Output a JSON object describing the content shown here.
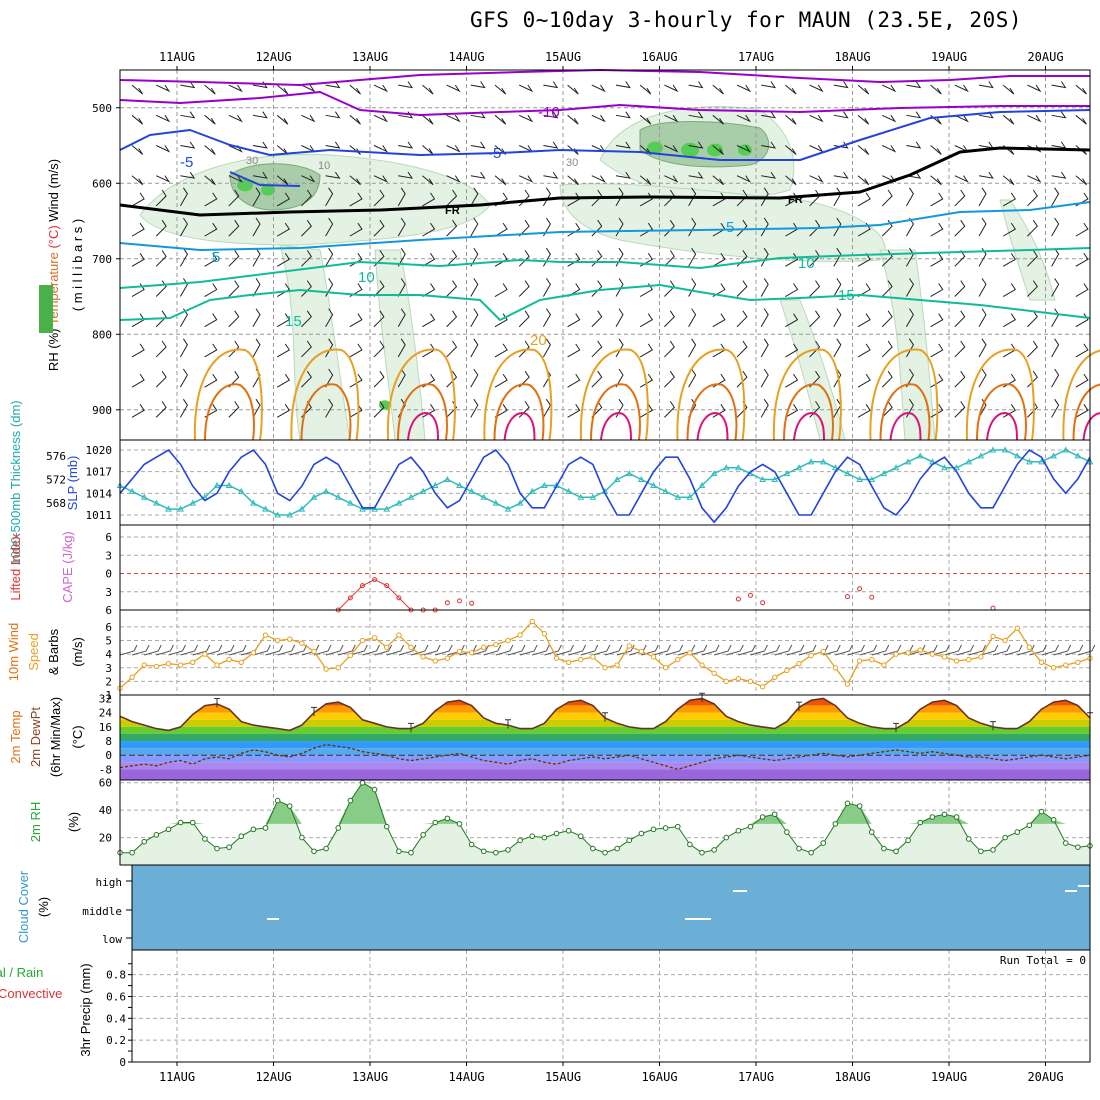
{
  "title": "GFS 0~10day 3-hourly for MAUN (23.5E, 20S)",
  "dates": [
    "11AUG",
    "12AUG",
    "13AUG",
    "14AUG",
    "15AUG",
    "16AUG",
    "17AUG",
    "18AUG",
    "19AUG",
    "20AUG"
  ],
  "colors": {
    "purple": "#9900cc",
    "blue": "#2244dd",
    "cyan": "#1199dd",
    "teal": "#11bb99",
    "green": "#22aa33",
    "orange": "#e8a020",
    "dkorange": "#e07010",
    "magenta": "#dd1177",
    "red": "#dd3333",
    "cloud": "#6baed6"
  },
  "chart_data": [
    {
      "type": "contour",
      "panel": "upper-air",
      "ylabel_parts": [
        "RH (%)",
        "Temperature",
        "(°C)",
        "Wind (m/s)"
      ],
      "ylabel_sub": "( m i l l i b a r s )",
      "yticks": [
        "500",
        "600",
        "700",
        "800",
        "900"
      ],
      "ylim": [
        940,
        450
      ],
      "contour_labels": [
        "-10",
        "-5",
        "-5",
        "5",
        "5",
        "10",
        "10",
        "15",
        "15",
        "20",
        "FR",
        "FR",
        "30",
        "30",
        "10"
      ]
    },
    {
      "type": "line",
      "panel": "sfc-pressure",
      "ylabel_left": "1000-500mb Thickness (dm)",
      "ylabel_right": "SLP (mb)",
      "yticks_left": [
        "576",
        "572",
        "568"
      ],
      "yticks_right": [
        "1020",
        "1017",
        "1014",
        "1011"
      ],
      "x": [
        0,
        1,
        2,
        3,
        4,
        5,
        6,
        7,
        8,
        9,
        10,
        11,
        12,
        13,
        14,
        15,
        16,
        17,
        18,
        19,
        20,
        21,
        22,
        23,
        24,
        25,
        26,
        27,
        28,
        29,
        30,
        31,
        32,
        33,
        34,
        35,
        36,
        37,
        38,
        39,
        40,
        41,
        42,
        43,
        44,
        45,
        46,
        47,
        48,
        49,
        50,
        51,
        52,
        53,
        54,
        55,
        56,
        57,
        58,
        59,
        60,
        61,
        62,
        63,
        64,
        65,
        66,
        67,
        68,
        69,
        70,
        71,
        72,
        73,
        74,
        75,
        76,
        77,
        78,
        79,
        80
      ],
      "series": [
        {
          "name": "SLP (mb)",
          "values": [
            1014,
            1016,
            1018,
            1019,
            1020,
            1018,
            1015,
            1013,
            1014,
            1017,
            1019,
            1020,
            1018,
            1014,
            1013,
            1015,
            1018,
            1019,
            1018,
            1015,
            1012,
            1012,
            1015,
            1018,
            1019,
            1017,
            1014,
            1012,
            1013,
            1016,
            1019,
            1020,
            1018,
            1014,
            1012,
            1012,
            1015,
            1018,
            1019,
            1018,
            1014,
            1011,
            1011,
            1014,
            1017,
            1019,
            1019,
            1016,
            1012,
            1010,
            1012,
            1015,
            1017,
            1018,
            1017,
            1014,
            1011,
            1011,
            1014,
            1017,
            1019,
            1018,
            1015,
            1012,
            1011,
            1013,
            1016,
            1018,
            1019,
            1017,
            1014,
            1012,
            1012,
            1015,
            1018,
            1020,
            1019,
            1016,
            1014,
            1016,
            1019
          ]
        },
        {
          "name": "1000-500mb Thickness (dm)",
          "values": [
            571,
            570,
            569,
            568,
            567,
            567,
            568,
            569,
            571,
            571,
            570,
            568,
            567,
            566,
            566,
            567,
            569,
            570,
            569,
            568,
            567,
            567,
            567,
            568,
            569,
            570,
            571,
            572,
            571,
            570,
            569,
            568,
            567,
            568,
            570,
            571,
            571,
            570,
            569,
            569,
            570,
            572,
            573,
            572,
            571,
            570,
            569,
            569,
            571,
            573,
            574,
            574,
            573,
            572,
            572,
            573,
            574,
            575,
            575,
            574,
            573,
            572,
            572,
            573,
            574,
            575,
            576,
            575,
            574,
            574,
            575,
            576,
            577,
            577,
            576,
            575,
            575,
            576,
            577,
            576,
            575
          ]
        }
      ]
    },
    {
      "type": "line",
      "panel": "stability",
      "ylabel": "Lifted Index",
      "ylabel2": "CAPE (J/kg)",
      "yticks": [
        "6",
        "3",
        "0",
        "3",
        "6"
      ],
      "ylim": [
        6,
        -6
      ],
      "x": [
        18,
        19,
        20,
        21,
        22,
        23,
        24,
        25,
        26
      ],
      "series": [
        {
          "name": "Lifted Index",
          "values": [
            6,
            4,
            2,
            1,
            2,
            4,
            6,
            6,
            6
          ]
        }
      ]
    },
    {
      "type": "line",
      "panel": "wind10m",
      "ylabel": "10m Wind Speed & Barbs (m/s)",
      "yticks": [
        "6",
        "5",
        "4",
        "3",
        "2",
        "1"
      ],
      "ylim": [
        1,
        6.8
      ],
      "x": [
        0,
        1,
        2,
        3,
        4,
        5,
        6,
        7,
        8,
        9,
        10,
        11,
        12,
        13,
        14,
        15,
        16,
        17,
        18,
        19,
        20,
        21,
        22,
        23,
        24,
        25,
        26,
        27,
        28,
        29,
        30,
        31,
        32,
        33,
        34,
        35,
        36,
        37,
        38,
        39,
        40,
        41,
        42,
        43,
        44,
        45,
        46,
        47,
        48,
        49,
        50,
        51,
        52,
        53,
        54,
        55,
        56,
        57,
        58,
        59,
        60,
        61,
        62,
        63,
        64,
        65,
        66,
        67,
        68,
        69,
        70,
        71,
        72,
        73,
        74,
        75,
        76,
        77,
        78,
        79,
        80
      ],
      "series": [
        {
          "name": "10m Wind Speed",
          "values": [
            1.5,
            2.3,
            3.2,
            3.1,
            3.3,
            3.2,
            3.4,
            4.0,
            3.2,
            3.6,
            3.4,
            4.1,
            5.4,
            5.0,
            5.1,
            4.8,
            4.2,
            2.9,
            3.0,
            3.9,
            5.0,
            5.2,
            4.5,
            5.4,
            4.5,
            3.8,
            3.5,
            3.7,
            4.2,
            4.1,
            4.5,
            4.7,
            5.0,
            5.4,
            6.4,
            5.5,
            3.7,
            3.4,
            3.6,
            3.8,
            3.0,
            3.2,
            4.6,
            4.2,
            3.8,
            3.0,
            3.6,
            4.1,
            3.2,
            2.6,
            2.0,
            2.2,
            2.0,
            1.6,
            2.3,
            2.8,
            3.3,
            3.9,
            4.2,
            3.0,
            1.8,
            3.5,
            3.6,
            3.2,
            4.0,
            4.1,
            4.3,
            4.0,
            3.8,
            3.5,
            3.6,
            3.8,
            5.3,
            5.0,
            5.9,
            4.5,
            3.4,
            3.0,
            3.2,
            3.4,
            3.7
          ]
        }
      ]
    },
    {
      "type": "area",
      "panel": "temperature",
      "ylabel": "2m Temp 2m DewPt (6hr Min/Max) (°C)",
      "yticks": [
        "32",
        "24",
        "16",
        "8",
        "0",
        "-8"
      ],
      "ylim": [
        -14,
        34
      ],
      "x": [
        0,
        1,
        2,
        3,
        4,
        5,
        6,
        7,
        8,
        9,
        10,
        11,
        12,
        13,
        14,
        15,
        16,
        17,
        18,
        19,
        20,
        21,
        22,
        23,
        24,
        25,
        26,
        27,
        28,
        29,
        30,
        31,
        32,
        33,
        34,
        35,
        36,
        37,
        38,
        39,
        40,
        41,
        42,
        43,
        44,
        45,
        46,
        47,
        48,
        49,
        50,
        51,
        52,
        53,
        54,
        55,
        56,
        57,
        58,
        59,
        60,
        61,
        62,
        63,
        64,
        65,
        66,
        67,
        68,
        69,
        70,
        71,
        72,
        73,
        74,
        75,
        76,
        77,
        78,
        79,
        80
      ],
      "series": [
        {
          "name": "2m Temp",
          "values": [
            22,
            19,
            17,
            15,
            14,
            16,
            23,
            28,
            29,
            26,
            19,
            17,
            16,
            15,
            14,
            17,
            24,
            29,
            30,
            27,
            20,
            18,
            16,
            15,
            15,
            18,
            25,
            30,
            31,
            28,
            21,
            18,
            17,
            15,
            15,
            18,
            26,
            30,
            31,
            28,
            21,
            18,
            16,
            15,
            15,
            19,
            26,
            31,
            32,
            29,
            22,
            19,
            17,
            16,
            15,
            19,
            27,
            31,
            32,
            28,
            21,
            18,
            16,
            15,
            15,
            19,
            26,
            30,
            31,
            28,
            21,
            18,
            16,
            15,
            15,
            19,
            26,
            30,
            31,
            28,
            21
          ]
        },
        {
          "name": "2m DewPt",
          "values": [
            -7,
            -6,
            -5,
            -6,
            -4,
            -3,
            -5,
            -2,
            -1,
            -2,
            1,
            3,
            2,
            0,
            -1,
            1,
            4,
            6,
            5,
            4,
            2,
            1,
            0,
            -2,
            -3,
            -2,
            -1,
            0,
            1,
            -1,
            -3,
            -4,
            -5,
            -3,
            -2,
            -4,
            -5,
            -3,
            -2,
            -1,
            -2,
            -1,
            0,
            -2,
            -4,
            -6,
            -8,
            -6,
            -4,
            -2,
            -1,
            0,
            -1,
            -2,
            -3,
            -2,
            -1,
            0,
            1,
            0,
            -1,
            0,
            1,
            2,
            3,
            2,
            1,
            2,
            1,
            0,
            -1,
            -1,
            -2,
            -3,
            -2,
            -1,
            0,
            -1,
            -2,
            -1,
            0
          ]
        }
      ]
    },
    {
      "type": "area",
      "panel": "rh2m",
      "ylabel": "2m RH (%)",
      "yticks": [
        "60",
        "40",
        "20"
      ],
      "ylim": [
        0,
        62
      ],
      "x": [
        0,
        1,
        2,
        3,
        4,
        5,
        6,
        7,
        8,
        9,
        10,
        11,
        12,
        13,
        14,
        15,
        16,
        17,
        18,
        19,
        20,
        21,
        22,
        23,
        24,
        25,
        26,
        27,
        28,
        29,
        30,
        31,
        32,
        33,
        34,
        35,
        36,
        37,
        38,
        39,
        40,
        41,
        42,
        43,
        44,
        45,
        46,
        47,
        48,
        49,
        50,
        51,
        52,
        53,
        54,
        55,
        56,
        57,
        58,
        59,
        60,
        61,
        62,
        63,
        64,
        65,
        66,
        67,
        68,
        69,
        70,
        71,
        72,
        73,
        74,
        75,
        76,
        77,
        78,
        79,
        80
      ],
      "series": [
        {
          "name": "2m RH",
          "values": [
            9,
            9,
            17,
            22,
            26,
            31,
            31,
            19,
            12,
            13,
            21,
            26,
            27,
            47,
            43,
            20,
            10,
            12,
            27,
            47,
            60,
            55,
            28,
            10,
            9,
            22,
            31,
            34,
            30,
            15,
            10,
            9,
            11,
            18,
            21,
            20,
            23,
            25,
            21,
            12,
            9,
            12,
            18,
            23,
            26,
            27,
            28,
            15,
            9,
            11,
            20,
            25,
            28,
            35,
            37,
            24,
            12,
            9,
            16,
            30,
            45,
            43,
            24,
            12,
            10,
            18,
            31,
            35,
            37,
            35,
            19,
            10,
            11,
            20,
            24,
            29,
            39,
            33,
            16,
            13,
            14
          ]
        }
      ]
    },
    {
      "type": "heatmap",
      "panel": "cloud",
      "ylabel": "Cloud Cover (%)",
      "yticks": [
        "high",
        "middle",
        "low"
      ]
    },
    {
      "type": "bar",
      "panel": "precip",
      "ylabel_left_a": "tal / Rain",
      "ylabel_left_b": "Convective",
      "ylabel": "3hr Precip (mm)",
      "yticks": [
        "0.8",
        "0.6",
        "0.4",
        "0.2",
        "0"
      ],
      "ylim": [
        0,
        1
      ],
      "run_total": "Run Total = 0",
      "values": []
    }
  ]
}
